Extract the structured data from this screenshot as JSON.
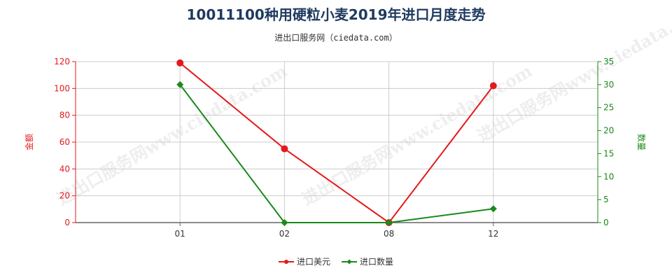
{
  "chart": {
    "title": "10011100种用硬粒小麦2019年进口月度走势",
    "subtitle": "进出口服务网（ciedata.com）",
    "watermark": "进出口服务网www.ciedata.com",
    "left_axis_label": "金额",
    "right_axis_label": "数量"
  },
  "colors": {
    "amount": "#e31a1c",
    "quantity": "#1a8a1a",
    "grid": "#cccccc",
    "axis": "#666666"
  },
  "chart_data": {
    "type": "line",
    "title": "10011100种用硬粒小麦2019年进口月度走势",
    "subtitle": "进出口服务网（ciedata.com）",
    "categories": [
      "01",
      "02",
      "08",
      "12"
    ],
    "x_label": "",
    "y_left": {
      "label": "金额",
      "ylim": [
        0,
        120
      ],
      "ticks": [
        0,
        20,
        40,
        60,
        80,
        100,
        120
      ]
    },
    "y_right": {
      "label": "数量",
      "ylim": [
        0,
        35
      ],
      "ticks": [
        0,
        5,
        10,
        15,
        20,
        25,
        30,
        35
      ]
    },
    "series": [
      {
        "name": "进口美元",
        "axis": "left",
        "color": "#e31a1c",
        "marker": "circle",
        "values": [
          119,
          55,
          0,
          102
        ]
      },
      {
        "name": "进口数量",
        "axis": "right",
        "color": "#1a8a1a",
        "marker": "diamond",
        "values": [
          30,
          0,
          0,
          3
        ]
      }
    ],
    "grid": true,
    "legend": "bottom-center"
  }
}
